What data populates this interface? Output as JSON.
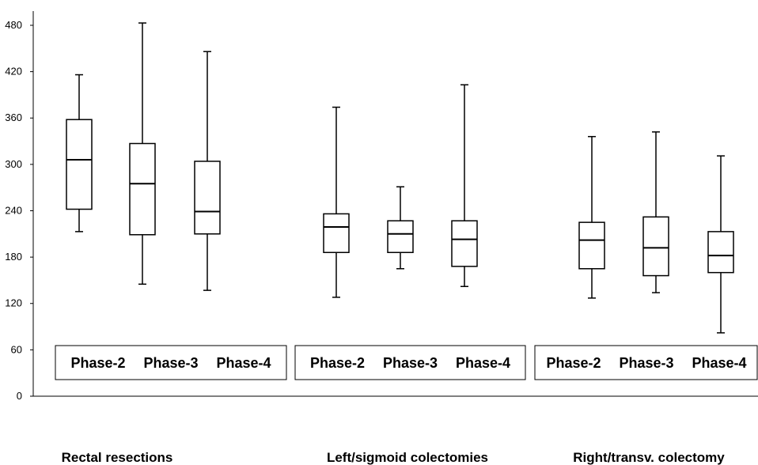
{
  "chart_data": {
    "type": "boxplot",
    "title": "",
    "xlabel": "",
    "ylabel": "",
    "ylim": [
      0,
      500
    ],
    "yticks": [
      0,
      60,
      120,
      180,
      240,
      300,
      360,
      420,
      480
    ],
    "grid": false,
    "groups": [
      {
        "name": "Rectal resections",
        "phase_labels": [
          "Phase-2",
          "Phase-3",
          "Phase-4"
        ],
        "boxes": [
          {
            "phase": "Phase-2",
            "min": 213,
            "q1": 242,
            "median": 306,
            "q3": 358,
            "max": 416
          },
          {
            "phase": "Phase-3",
            "min": 145,
            "q1": 209,
            "median": 275,
            "q3": 327,
            "max": 483
          },
          {
            "phase": "Phase-4",
            "min": 137,
            "q1": 210,
            "median": 239,
            "q3": 304,
            "max": 446
          }
        ]
      },
      {
        "name": "Left/sigmoid colectomies",
        "phase_labels": [
          "Phase-2",
          "Phase-3",
          "Phase-4"
        ],
        "boxes": [
          {
            "phase": "Phase-2",
            "min": 128,
            "q1": 186,
            "median": 219,
            "q3": 236,
            "max": 374
          },
          {
            "phase": "Phase-3",
            "min": 165,
            "q1": 186,
            "median": 210,
            "q3": 227,
            "max": 271
          },
          {
            "phase": "Phase-4",
            "min": 142,
            "q1": 168,
            "median": 203,
            "q3": 227,
            "max": 403
          }
        ]
      },
      {
        "name": "Right/transv. colectomy",
        "phase_labels": [
          "Phase-2",
          "Phase-3",
          "Phase-4"
        ],
        "boxes": [
          {
            "phase": "Phase-2",
            "min": 127,
            "q1": 165,
            "median": 202,
            "q3": 225,
            "max": 336
          },
          {
            "phase": "Phase-3",
            "min": 134,
            "q1": 156,
            "median": 192,
            "q3": 232,
            "max": 342
          },
          {
            "phase": "Phase-4",
            "min": 82,
            "q1": 160,
            "median": 182,
            "q3": 213,
            "max": 311
          }
        ]
      }
    ]
  }
}
